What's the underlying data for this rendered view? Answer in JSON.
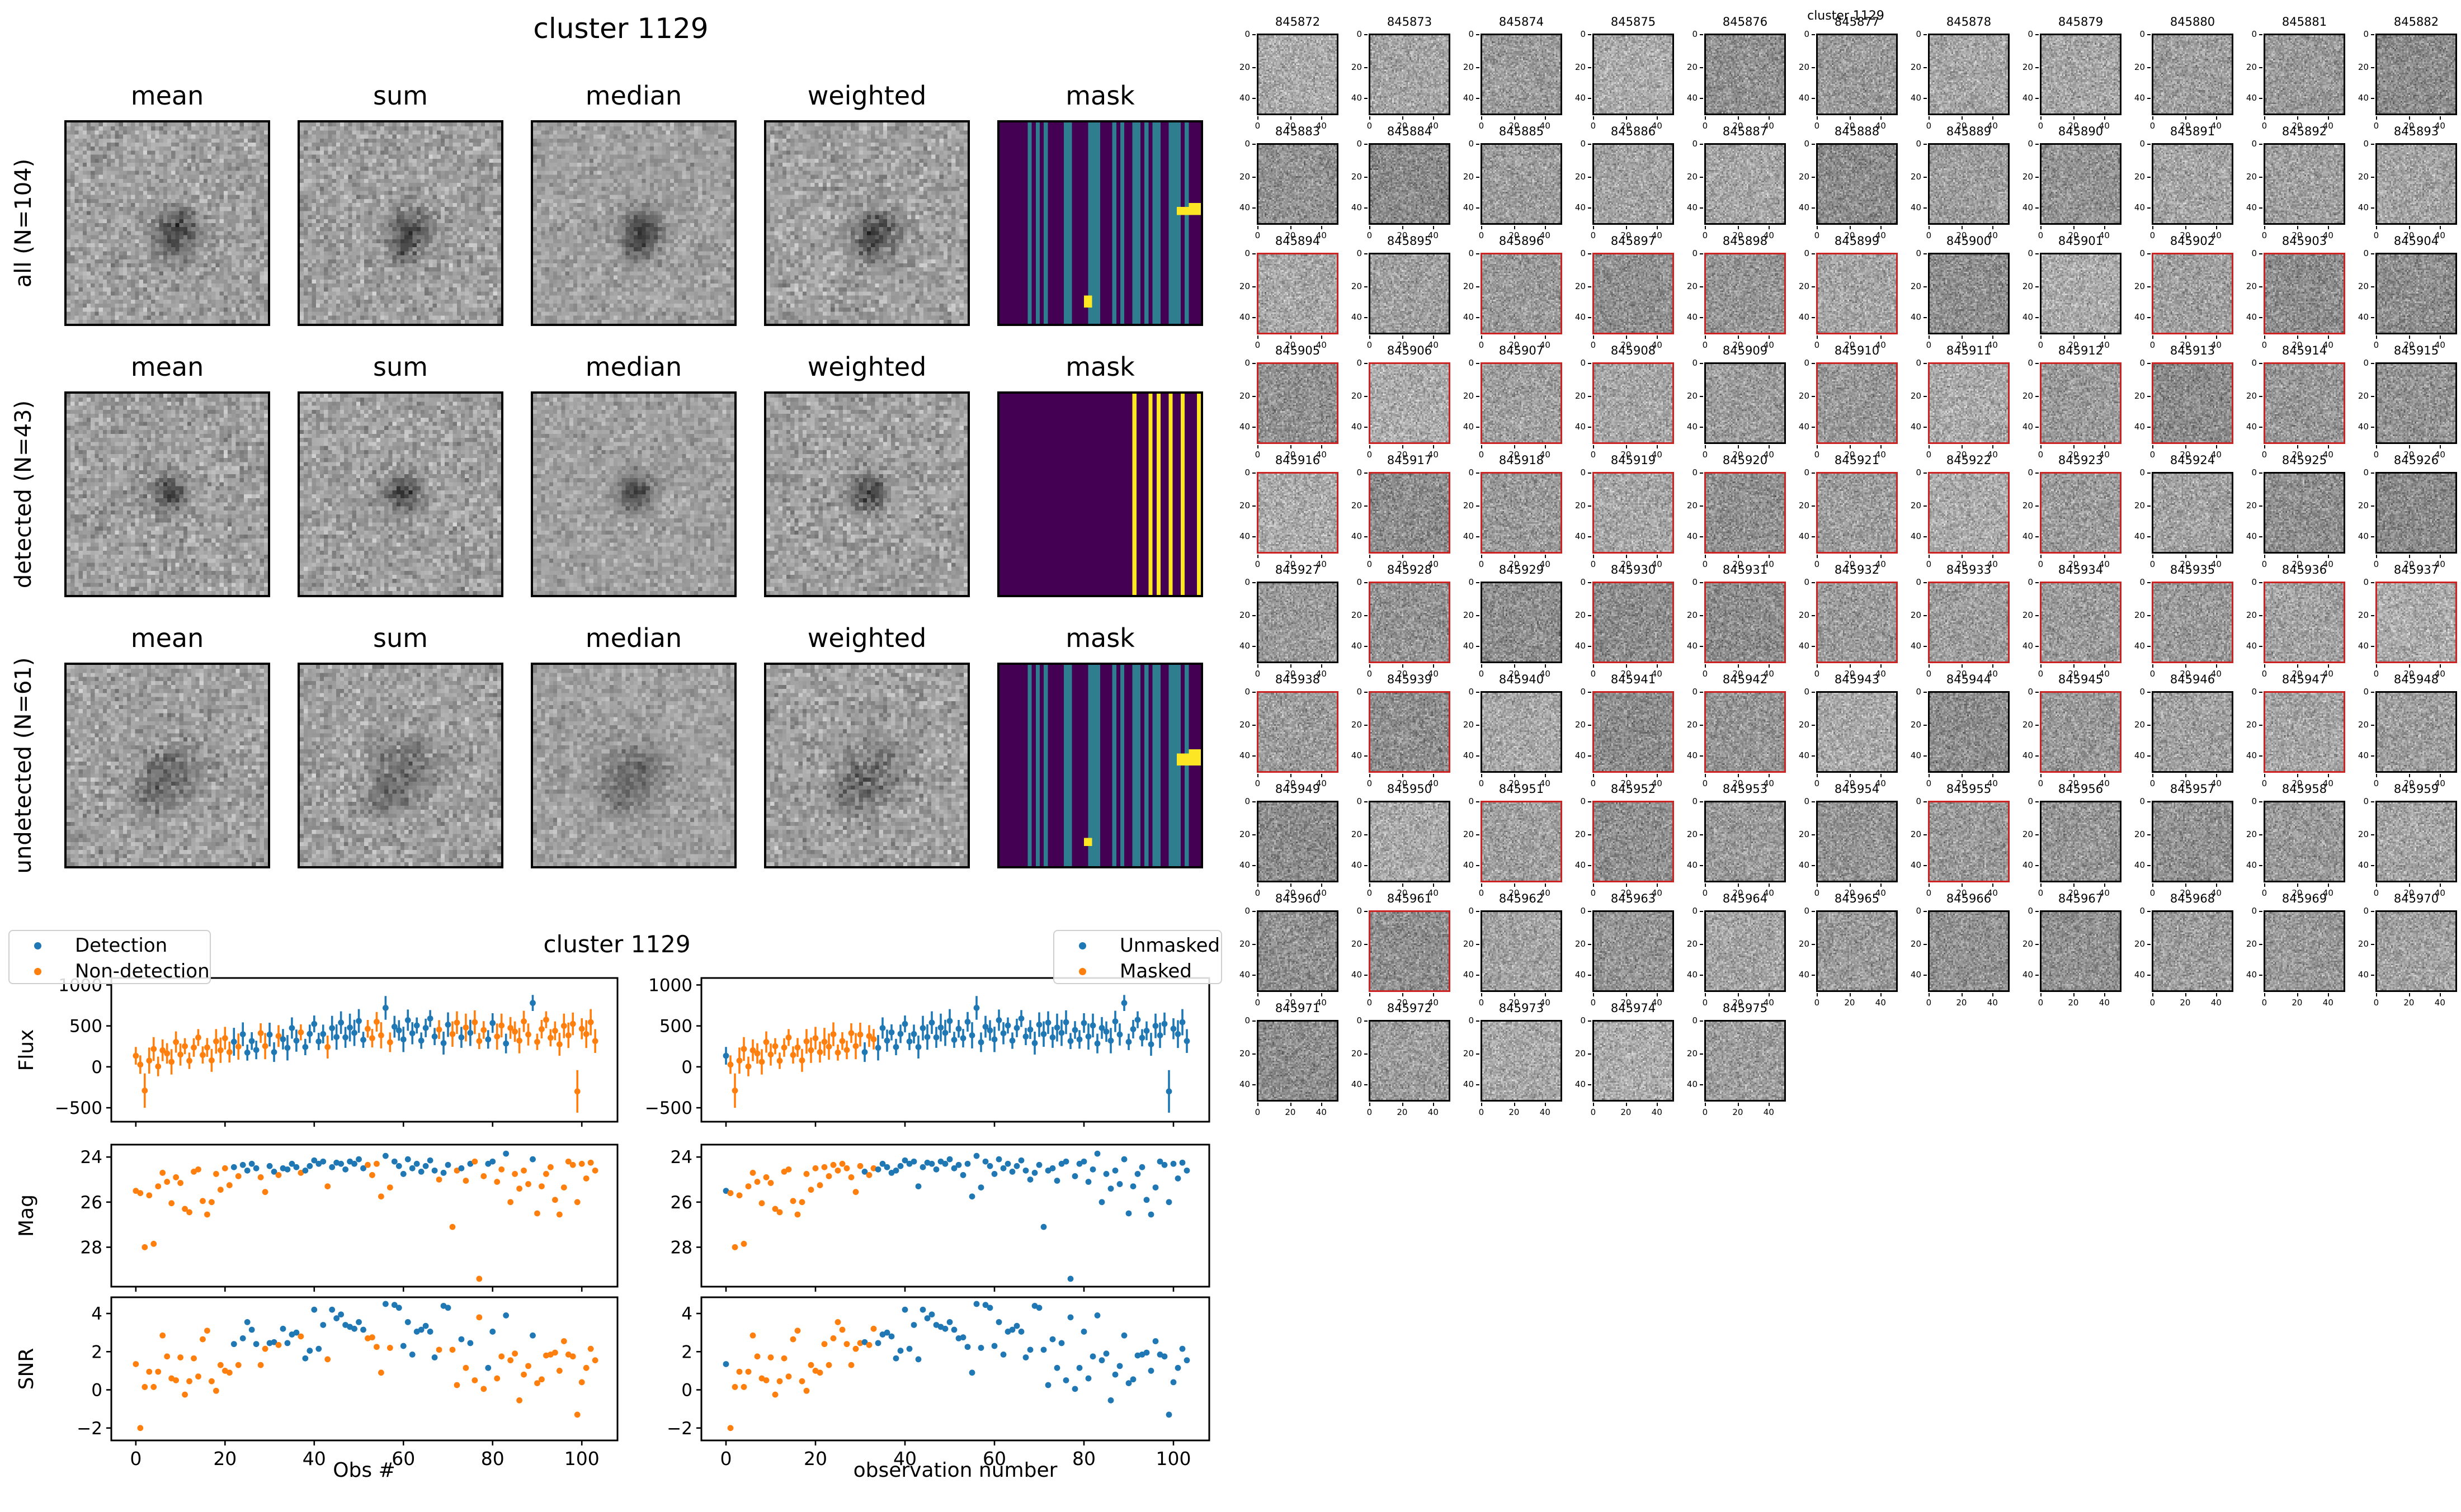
{
  "stamp_figure": {
    "title": "cluster 1129",
    "column_headers": [
      "mean",
      "sum",
      "median",
      "weighted",
      "mask"
    ],
    "rows": [
      {
        "label": "all (N=104)",
        "mask": "all"
      },
      {
        "label": "detected (N=43)",
        "mask": "detected"
      },
      {
        "label": "undetected (N=61)",
        "mask": "undetected"
      }
    ],
    "mask_palette": {
      "background": "#440154",
      "stripe": "#2e7e8f",
      "flag": "#fde725"
    },
    "masks": {
      "all": {
        "stripes": [
          [
            0.135,
            0.168
          ],
          [
            0.182,
            0.202
          ],
          [
            0.218,
            0.245
          ],
          [
            0.328,
            0.362
          ],
          [
            0.442,
            0.502
          ],
          [
            0.556,
            0.578
          ],
          [
            0.598,
            0.618
          ],
          [
            0.655,
            0.692
          ],
          [
            0.712,
            0.735
          ],
          [
            0.755,
            0.775
          ],
          [
            0.788,
            0.808
          ],
          [
            0.846,
            0.906
          ],
          [
            0.916,
            0.934
          ]
        ],
        "stripe_color": "stripe",
        "rects": [
          [
            0.875,
            1.0,
            0.42,
            0.465
          ],
          [
            0.93,
            1.0,
            0.395,
            0.42
          ],
          [
            0.415,
            0.455,
            0.86,
            0.91
          ]
        ]
      },
      "detected": {
        "stripes": [
          [
            0.655,
            0.68
          ],
          [
            0.735,
            0.76
          ],
          [
            0.78,
            0.805
          ],
          [
            0.84,
            0.865
          ],
          [
            0.9,
            0.925
          ],
          [
            0.975,
            1.0
          ]
        ],
        "stripe_color": "flag",
        "rects": []
      },
      "undetected": {
        "stripes": [
          [
            0.135,
            0.168
          ],
          [
            0.182,
            0.202
          ],
          [
            0.218,
            0.245
          ],
          [
            0.328,
            0.362
          ],
          [
            0.442,
            0.502
          ],
          [
            0.556,
            0.578
          ],
          [
            0.598,
            0.618
          ],
          [
            0.655,
            0.692
          ],
          [
            0.712,
            0.735
          ],
          [
            0.755,
            0.775
          ],
          [
            0.788,
            0.808
          ],
          [
            0.846,
            0.906
          ],
          [
            0.916,
            0.934
          ]
        ],
        "stripe_color": "stripe",
        "rects": [
          [
            0.875,
            1.0,
            0.445,
            0.49
          ],
          [
            0.93,
            1.0,
            0.42,
            0.445
          ],
          [
            0.415,
            0.455,
            0.855,
            0.905
          ]
        ]
      }
    }
  },
  "chart_data": {
    "type": "scatter",
    "title": "cluster 1129",
    "xlabel_left": "Obs #",
    "xlabel_right": "observation number",
    "ylabels": [
      "Flux",
      "Mag",
      "SNR"
    ],
    "x_ticks": [
      {
        "v": 0,
        "label": "0"
      },
      {
        "v": 20,
        "label": "20"
      },
      {
        "v": 40,
        "label": "40"
      },
      {
        "v": 60,
        "label": "60"
      },
      {
        "v": 80,
        "label": "80"
      },
      {
        "v": 100,
        "label": "100"
      }
    ],
    "xlim": [
      -5.5,
      108
    ],
    "panel_rows": [
      {
        "metric": "flux",
        "ylim": [
          -670,
          1085
        ],
        "yticks": [
          {
            "v": 1000,
            "label": "1000"
          },
          {
            "v": 500,
            "label": "500"
          },
          {
            "v": 0,
            "label": "0"
          },
          {
            "v": -500,
            "label": "−500"
          }
        ],
        "errorbars": true
      },
      {
        "metric": "mag",
        "ylim": [
          29.75,
          23.45
        ],
        "yticks": [
          {
            "v": 24,
            "label": "24"
          },
          {
            "v": 26,
            "label": "26"
          },
          {
            "v": 28,
            "label": "28"
          }
        ],
        "errorbars": false
      },
      {
        "metric": "snr",
        "ylim": [
          -2.65,
          4.85
        ],
        "yticks": [
          {
            "v": 4,
            "label": "4"
          },
          {
            "v": 2,
            "label": "2"
          },
          {
            "v": 0,
            "label": "0"
          },
          {
            "v": -2,
            "label": "−2"
          }
        ],
        "errorbars": false
      }
    ],
    "legend_left": {
      "items": [
        {
          "label": "Detection",
          "color": "#1f77b4"
        },
        {
          "label": "Non-detection",
          "color": "#ff7f0e"
        }
      ]
    },
    "legend_right": {
      "items": [
        {
          "label": "Unmasked",
          "color": "#1f77b4"
        },
        {
          "label": "Masked",
          "color": "#ff7f0e"
        }
      ]
    },
    "colors": {
      "detection": "#1f77b4",
      "nondetection": "#ff7f0e"
    },
    "n_obs": 104,
    "flux": [
      135,
      27,
      -290,
      76,
      218,
      5,
      202,
      164,
      61,
      303,
      150,
      252,
      74,
      236,
      358,
      145,
      237,
      79,
      311,
      203,
      350,
      180,
      306,
      247,
      398,
      174,
      315,
      206,
      412,
      253,
      394,
      180,
      376,
      337,
      233,
      474,
      320,
      421,
      242,
      403,
      524,
      310,
      401,
      242,
      473,
      364,
      540,
      360,
      480,
      415,
      560,
      330,
      465,
      350,
      550,
      385,
      720,
      300,
      490,
      445,
      335,
      570,
      410,
      505,
      320,
      475,
      590,
      370,
      455,
      290,
      515,
      400,
      540,
      360,
      480,
      415,
      545,
      315,
      450,
      335,
      535,
      370,
      505,
      285,
      475,
      430,
      320,
      555,
      395,
      780,
      305,
      460,
      575,
      355,
      440,
      275,
      500,
      385,
      525,
      -300,
      465,
      400,
      545,
      315
    ],
    "flux_err": [
      108,
      113,
      210,
      160,
      145,
      120,
      133,
      125,
      155,
      130,
      135,
      98,
      100,
      113,
      103,
      105,
      115,
      140,
      150,
      155,
      138,
      128,
      170,
      160,
      145,
      98,
      108,
      113,
      120,
      160,
      145,
      120,
      133,
      125,
      155,
      130,
      135,
      98,
      100,
      113,
      103,
      105,
      115,
      140,
      150,
      155,
      138,
      128,
      170,
      160,
      145,
      98,
      108,
      113,
      120,
      160,
      145,
      120,
      133,
      125,
      155,
      130,
      135,
      98,
      100,
      113,
      103,
      105,
      115,
      140,
      150,
      155,
      138,
      128,
      170,
      160,
      145,
      98,
      108,
      113,
      120,
      160,
      145,
      120,
      133,
      125,
      155,
      130,
      135,
      98,
      100,
      113,
      103,
      105,
      115,
      140,
      150,
      155,
      138,
      260,
      128,
      170,
      160,
      145
    ],
    "mag": [
      25.5,
      25.6,
      28.0,
      25.7,
      27.85,
      25.3,
      24.7,
      25.1,
      26.05,
      24.9,
      25.15,
      26.3,
      26.45,
      24.65,
      24.55,
      25.95,
      26.55,
      26.0,
      24.75,
      25.45,
      24.5,
      25.25,
      24.45,
      24.85,
      24.35,
      24.6,
      24.3,
      24.5,
      24.9,
      25.55,
      24.4,
      24.65,
      24.8,
      24.5,
      24.55,
      24.3,
      24.45,
      24.7,
      24.6,
      24.4,
      24.15,
      24.3,
      24.2,
      25.3,
      24.45,
      24.25,
      24.3,
      24.55,
      24.2,
      24.3,
      24.1,
      24.5,
      24.35,
      24.8,
      24.3,
      25.75,
      23.95,
      25.35,
      24.2,
      24.4,
      24.75,
      24.1,
      24.5,
      24.3,
      24.65,
      24.4,
      24.15,
      24.6,
      25.0,
      24.7,
      24.35,
      27.1,
      24.6,
      24.5,
      25.05,
      24.3,
      24.2,
      29.4,
      24.85,
      24.3,
      24.2,
      25.1,
      24.55,
      23.85,
      26.0,
      24.75,
      25.4,
      24.6,
      25.2,
      24.1,
      26.5,
      25.3,
      24.75,
      24.45,
      25.9,
      26.55,
      25.35,
      24.2,
      24.35,
      26.0,
      24.3,
      24.95,
      24.25,
      24.6
    ],
    "snr": [
      1.35,
      -2.0,
      0.15,
      0.95,
      0.15,
      0.95,
      2.85,
      1.75,
      0.6,
      0.5,
      1.7,
      -0.25,
      0.45,
      1.65,
      0.7,
      2.65,
      3.1,
      0.45,
      -0.05,
      1.3,
      1.0,
      0.9,
      2.4,
      1.3,
      2.7,
      3.55,
      3.15,
      2.4,
      1.3,
      2.15,
      2.45,
      2.5,
      2.35,
      3.2,
      2.45,
      2.9,
      3.0,
      2.8,
      1.65,
      2.05,
      4.2,
      2.15,
      3.4,
      1.6,
      4.2,
      3.75,
      3.95,
      3.4,
      3.3,
      3.2,
      3.55,
      3.15,
      2.7,
      2.75,
      2.25,
      0.9,
      4.5,
      2.2,
      4.45,
      4.3,
      2.3,
      3.55,
      1.85,
      3.05,
      3.15,
      3.35,
      3.05,
      1.7,
      2.1,
      4.4,
      4.3,
      2.1,
      0.25,
      2.65,
      1.15,
      2.45,
      0.5,
      3.8,
      0.05,
      1.15,
      3.05,
      0.6,
      1.75,
      3.9,
      1.55,
      1.9,
      -0.55,
      0.8,
      1.25,
      2.85,
      0.35,
      0.55,
      1.8,
      1.85,
      1.95,
      1.0,
      2.55,
      1.85,
      1.75,
      -1.3,
      0.4,
      1.15,
      2.15,
      1.55
    ],
    "detected": [
      0,
      0,
      0,
      0,
      0,
      0,
      0,
      0,
      0,
      0,
      0,
      0,
      0,
      0,
      0,
      0,
      0,
      0,
      0,
      0,
      0,
      0,
      1,
      0,
      1,
      1,
      1,
      1,
      0,
      0,
      1,
      1,
      0,
      1,
      1,
      1,
      1,
      0,
      1,
      1,
      1,
      1,
      1,
      0,
      1,
      1,
      1,
      1,
      1,
      1,
      1,
      1,
      0,
      0,
      0,
      0,
      1,
      0,
      1,
      1,
      1,
      1,
      1,
      1,
      1,
      1,
      1,
      1,
      0,
      1,
      1,
      0,
      0,
      1,
      0,
      1,
      0,
      0,
      0,
      1,
      1,
      0,
      0,
      1,
      0,
      0,
      0,
      0,
      0,
      1,
      0,
      0,
      0,
      0,
      0,
      0,
      0,
      0,
      0,
      0,
      0,
      0,
      0,
      0
    ],
    "masked": [
      0,
      1,
      1,
      1,
      1,
      1,
      1,
      1,
      1,
      1,
      1,
      1,
      1,
      1,
      1,
      1,
      1,
      1,
      1,
      1,
      1,
      1,
      1,
      1,
      1,
      1,
      1,
      1,
      1,
      1,
      1,
      0,
      1,
      1,
      0,
      0,
      0,
      0,
      0,
      0,
      0,
      0,
      0,
      0,
      0,
      0,
      0,
      0,
      0,
      0,
      0,
      0,
      0,
      0,
      0,
      0,
      0,
      0,
      0,
      0,
      0,
      0,
      0,
      0,
      0,
      0,
      0,
      0,
      0,
      0,
      0,
      0,
      0,
      0,
      0,
      0,
      0,
      0,
      0,
      0,
      0,
      0,
      0,
      0,
      0,
      0,
      0,
      0,
      0,
      0,
      0,
      0,
      0,
      0,
      0,
      0,
      0,
      0,
      0,
      0,
      0,
      0,
      0,
      0
    ]
  },
  "grid_figure": {
    "title": "cluster 1129",
    "tick_labels": [
      "0",
      "20",
      "40"
    ],
    "border_colors": {
      "normal": "#000000",
      "flagged": "#cc2222"
    },
    "ids": [
      "845872",
      "845873",
      "845874",
      "845875",
      "845876",
      "845877",
      "845878",
      "845879",
      "845880",
      "845881",
      "845882",
      "845883",
      "845884",
      "845885",
      "845886",
      "845887",
      "845888",
      "845889",
      "845890",
      "845891",
      "845892",
      "845893",
      "845894",
      "845895",
      "845896",
      "845897",
      "845898",
      "845899",
      "845900",
      "845901",
      "845902",
      "845903",
      "845904",
      "845905",
      "845906",
      "845907",
      "845908",
      "845909",
      "845910",
      "845911",
      "845912",
      "845913",
      "845914",
      "845915",
      "845916",
      "845917",
      "845918",
      "845919",
      "845920",
      "845921",
      "845922",
      "845923",
      "845924",
      "845925",
      "845926",
      "845927",
      "845928",
      "845929",
      "845930",
      "845931",
      "845932",
      "845933",
      "845934",
      "845935",
      "845936",
      "845937",
      "845938",
      "845939",
      "845940",
      "845941",
      "845942",
      "845943",
      "845944",
      "845945",
      "845946",
      "845947",
      "845948",
      "845949",
      "845950",
      "845951",
      "845952",
      "845953",
      "845954",
      "845955",
      "845956",
      "845957",
      "845958",
      "845959",
      "845960",
      "845961",
      "845962",
      "845963",
      "845964",
      "845965",
      "845966",
      "845967",
      "845968",
      "845969",
      "845970",
      "845971",
      "845972",
      "845973",
      "845974",
      "845975"
    ],
    "red_border_ids": [
      "845894",
      "845896",
      "845897",
      "845898",
      "845899",
      "845902",
      "845903",
      "845905",
      "845906",
      "845907",
      "845908",
      "845910",
      "845911",
      "845912",
      "845913",
      "845914",
      "845916",
      "845917",
      "845918",
      "845919",
      "845920",
      "845921",
      "845922",
      "845923",
      "845928",
      "845930",
      "845931",
      "845932",
      "845933",
      "845934",
      "845935",
      "845936",
      "845937",
      "845938",
      "845939",
      "845941",
      "845942",
      "845945",
      "845947",
      "845951",
      "845952",
      "845955",
      "845961"
    ]
  }
}
